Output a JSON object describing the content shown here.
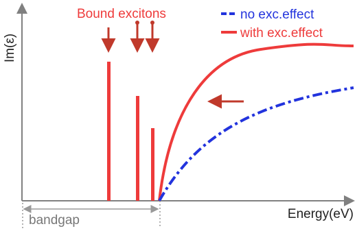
{
  "title": "Bound excitons",
  "legend": [
    {
      "label": "no exc.effect"
    },
    {
      "label": "with exc.effect"
    }
  ],
  "y_axis_label": "Im(ε)",
  "x_axis_label": "Energy(eV)",
  "annotation": "bandgap"
}
